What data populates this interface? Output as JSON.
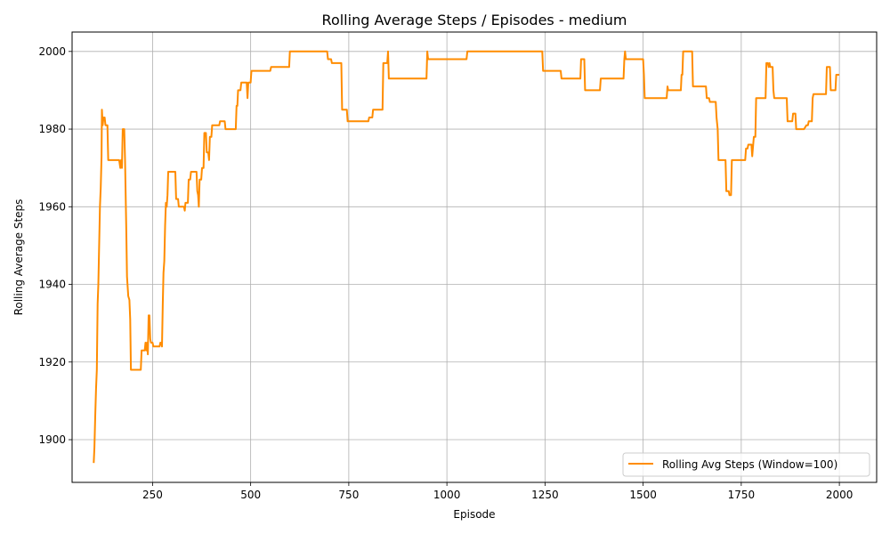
{
  "chart_data": {
    "type": "line",
    "title": "Rolling Average Steps / Episodes - medium",
    "xlabel": "Episode",
    "ylabel": "Rolling Average Steps",
    "xlim": [
      45,
      2095
    ],
    "ylim": [
      1889,
      2005
    ],
    "xticks": [
      250,
      500,
      750,
      1000,
      1250,
      1500,
      1750,
      2000
    ],
    "yticks": [
      1900,
      1920,
      1940,
      1960,
      1980,
      2000
    ],
    "grid": true,
    "legend_position": "lower-right",
    "line_color": "#ff8c00",
    "series": [
      {
        "name": "Rolling Avg Steps (Window=100)",
        "points": [
          [
            100,
            1894
          ],
          [
            102,
            1898
          ],
          [
            104,
            1906
          ],
          [
            106,
            1913
          ],
          [
            108,
            1918
          ],
          [
            110,
            1935
          ],
          [
            112,
            1940
          ],
          [
            114,
            1950
          ],
          [
            116,
            1960
          ],
          [
            118,
            1965
          ],
          [
            120,
            1973
          ],
          [
            121,
            1985
          ],
          [
            123,
            1981
          ],
          [
            125,
            1983
          ],
          [
            128,
            1983
          ],
          [
            130,
            1981
          ],
          [
            135,
            1981
          ],
          [
            137,
            1972
          ],
          [
            150,
            1972
          ],
          [
            165,
            1972
          ],
          [
            168,
            1970
          ],
          [
            170,
            1972
          ],
          [
            172,
            1970
          ],
          [
            174,
            1980
          ],
          [
            178,
            1980
          ],
          [
            180,
            1972
          ],
          [
            183,
            1954
          ],
          [
            185,
            1942
          ],
          [
            188,
            1937
          ],
          [
            191,
            1936
          ],
          [
            193,
            1931
          ],
          [
            195,
            1918
          ],
          [
            210,
            1918
          ],
          [
            220,
            1918
          ],
          [
            222,
            1923
          ],
          [
            230,
            1923
          ],
          [
            232,
            1925
          ],
          [
            234,
            1923
          ],
          [
            236,
            1925
          ],
          [
            238,
            1922
          ],
          [
            240,
            1932
          ],
          [
            242,
            1932
          ],
          [
            244,
            1926
          ],
          [
            246,
            1925
          ],
          [
            250,
            1925
          ],
          [
            252,
            1924
          ],
          [
            268,
            1924
          ],
          [
            270,
            1925
          ],
          [
            272,
            1925
          ],
          [
            274,
            1924
          ],
          [
            276,
            1935
          ],
          [
            278,
            1943
          ],
          [
            280,
            1946
          ],
          [
            282,
            1955
          ],
          [
            284,
            1961
          ],
          [
            286,
            1960
          ],
          [
            288,
            1963
          ],
          [
            290,
            1969
          ],
          [
            300,
            1969
          ],
          [
            308,
            1969
          ],
          [
            310,
            1962
          ],
          [
            315,
            1962
          ],
          [
            317,
            1960
          ],
          [
            330,
            1960
          ],
          [
            332,
            1959
          ],
          [
            334,
            1961
          ],
          [
            340,
            1961
          ],
          [
            342,
            1967
          ],
          [
            346,
            1967
          ],
          [
            348,
            1969
          ],
          [
            362,
            1969
          ],
          [
            364,
            1964
          ],
          [
            366,
            1963
          ],
          [
            368,
            1960
          ],
          [
            370,
            1967
          ],
          [
            374,
            1967
          ],
          [
            376,
            1970
          ],
          [
            380,
            1970
          ],
          [
            382,
            1979
          ],
          [
            386,
            1979
          ],
          [
            388,
            1974
          ],
          [
            392,
            1974
          ],
          [
            394,
            1972
          ],
          [
            396,
            1978
          ],
          [
            400,
            1978
          ],
          [
            402,
            1981
          ],
          [
            420,
            1981
          ],
          [
            422,
            1982
          ],
          [
            434,
            1982
          ],
          [
            436,
            1980
          ],
          [
            462,
            1980
          ],
          [
            464,
            1986
          ],
          [
            466,
            1986
          ],
          [
            468,
            1990
          ],
          [
            474,
            1990
          ],
          [
            476,
            1992
          ],
          [
            490,
            1992
          ],
          [
            492,
            1988
          ],
          [
            494,
            1992
          ],
          [
            500,
            1992
          ],
          [
            502,
            1995
          ],
          [
            550,
            1995
          ],
          [
            552,
            1996
          ],
          [
            598,
            1996
          ],
          [
            600,
            2000
          ],
          [
            640,
            2000
          ],
          [
            695,
            2000
          ],
          [
            697,
            1998
          ],
          [
            705,
            1998
          ],
          [
            707,
            1997
          ],
          [
            731,
            1997
          ],
          [
            733,
            1985
          ],
          [
            745,
            1985
          ],
          [
            747,
            1982
          ],
          [
            800,
            1982
          ],
          [
            802,
            1983
          ],
          [
            810,
            1983
          ],
          [
            812,
            1985
          ],
          [
            836,
            1985
          ],
          [
            838,
            1997
          ],
          [
            848,
            1997
          ],
          [
            850,
            2000
          ],
          [
            852,
            1993
          ],
          [
            900,
            1993
          ],
          [
            948,
            1993
          ],
          [
            950,
            2000
          ],
          [
            952,
            1998
          ],
          [
            1000,
            1998
          ],
          [
            1050,
            1998
          ],
          [
            1052,
            2000
          ],
          [
            1150,
            2000
          ],
          [
            1243,
            2000
          ],
          [
            1245,
            1995
          ],
          [
            1290,
            1995
          ],
          [
            1292,
            1993
          ],
          [
            1340,
            1993
          ],
          [
            1342,
            1998
          ],
          [
            1350,
            1998
          ],
          [
            1352,
            1990
          ],
          [
            1390,
            1990
          ],
          [
            1392,
            1993
          ],
          [
            1450,
            1993
          ],
          [
            1452,
            1998
          ],
          [
            1454,
            2000
          ],
          [
            1456,
            1998
          ],
          [
            1500,
            1998
          ],
          [
            1502,
            1994
          ],
          [
            1504,
            1988
          ],
          [
            1560,
            1988
          ],
          [
            1562,
            1991
          ],
          [
            1564,
            1990
          ],
          [
            1596,
            1990
          ],
          [
            1598,
            1994
          ],
          [
            1600,
            1994
          ],
          [
            1602,
            2000
          ],
          [
            1625,
            2000
          ],
          [
            1627,
            1991
          ],
          [
            1660,
            1991
          ],
          [
            1662,
            1988
          ],
          [
            1668,
            1988
          ],
          [
            1670,
            1987
          ],
          [
            1685,
            1987
          ],
          [
            1687,
            1983
          ],
          [
            1690,
            1980
          ],
          [
            1692,
            1972
          ],
          [
            1710,
            1972
          ],
          [
            1712,
            1964
          ],
          [
            1718,
            1964
          ],
          [
            1720,
            1963
          ],
          [
            1724,
            1963
          ],
          [
            1726,
            1972
          ],
          [
            1760,
            1972
          ],
          [
            1762,
            1975
          ],
          [
            1766,
            1975
          ],
          [
            1768,
            1976
          ],
          [
            1776,
            1976
          ],
          [
            1778,
            1973
          ],
          [
            1782,
            1978
          ],
          [
            1786,
            1978
          ],
          [
            1788,
            1988
          ],
          [
            1812,
            1988
          ],
          [
            1814,
            1997
          ],
          [
            1818,
            1997
          ],
          [
            1820,
            1996
          ],
          [
            1822,
            1997
          ],
          [
            1824,
            1996
          ],
          [
            1830,
            1996
          ],
          [
            1832,
            1990
          ],
          [
            1834,
            1988
          ],
          [
            1866,
            1988
          ],
          [
            1868,
            1982
          ],
          [
            1880,
            1982
          ],
          [
            1882,
            1984
          ],
          [
            1888,
            1984
          ],
          [
            1890,
            1980
          ],
          [
            1910,
            1980
          ],
          [
            1916,
            1981
          ],
          [
            1920,
            1981
          ],
          [
            1922,
            1982
          ],
          [
            1930,
            1982
          ],
          [
            1932,
            1988
          ],
          [
            1934,
            1989
          ],
          [
            1966,
            1989
          ],
          [
            1968,
            1996
          ],
          [
            1976,
            1996
          ],
          [
            1978,
            1990
          ],
          [
            1990,
            1990
          ],
          [
            1992,
            1994
          ],
          [
            2000,
            1994
          ]
        ]
      }
    ]
  }
}
